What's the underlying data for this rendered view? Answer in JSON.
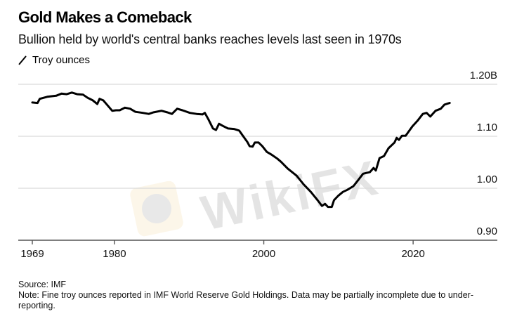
{
  "header": {
    "title": "Gold Makes a Comeback",
    "subtitle": "Bullion held by world's central banks reaches levels last seen in 1970s"
  },
  "legend": {
    "icon": "line-icon",
    "label": "Troy ounces"
  },
  "footer": {
    "source": "Source: IMF",
    "note": "Note: Fine troy ounces reported in IMF World Reserve Gold Holdings. Data may be partially incomplete due to under-reporting."
  },
  "watermark": {
    "text": "WikiFX"
  },
  "colors": {
    "line": "#000000",
    "grid": "#d9d9d9",
    "axis": "#555555"
  },
  "chart_data": {
    "type": "line",
    "title": "Gold Makes a Comeback",
    "subtitle": "Bullion held by world's central banks reaches levels last seen in 1970s",
    "xlabel": "",
    "ylabel": "Troy ounces",
    "xlim": [
      1969,
      2025
    ],
    "ylim": [
      0.9,
      1.2
    ],
    "x_ticks": [
      1969,
      1980,
      2000,
      2020
    ],
    "x_tick_labels": [
      "1969",
      "1980",
      "2000",
      "2020"
    ],
    "y_ticks": [
      0.9,
      1.0,
      1.1,
      1.2
    ],
    "y_tick_labels": [
      "0.90",
      "1.00",
      "1.10",
      "1.20B"
    ],
    "grid": true,
    "legend_position": "top-left",
    "series": [
      {
        "name": "Troy ounces",
        "unit": "billion troy ounces",
        "points": [
          [
            1969.0,
            1.165
          ],
          [
            1969.7,
            1.164
          ],
          [
            1970.0,
            1.172
          ],
          [
            1971.0,
            1.176
          ],
          [
            1972.2,
            1.178
          ],
          [
            1972.9,
            1.182
          ],
          [
            1973.6,
            1.181
          ],
          [
            1974.3,
            1.184
          ],
          [
            1975.0,
            1.181
          ],
          [
            1975.8,
            1.18
          ],
          [
            1976.4,
            1.174
          ],
          [
            1977.1,
            1.169
          ],
          [
            1977.7,
            1.162
          ],
          [
            1978.0,
            1.172
          ],
          [
            1978.5,
            1.169
          ],
          [
            1979.1,
            1.159
          ],
          [
            1979.7,
            1.149
          ],
          [
            1980.2,
            1.15
          ],
          [
            1980.7,
            1.15
          ],
          [
            1981.4,
            1.155
          ],
          [
            1982.1,
            1.153
          ],
          [
            1982.8,
            1.147
          ],
          [
            1983.8,
            1.145
          ],
          [
            1984.6,
            1.143
          ],
          [
            1985.2,
            1.146
          ],
          [
            1986.3,
            1.149
          ],
          [
            1987.1,
            1.146
          ],
          [
            1987.7,
            1.143
          ],
          [
            1988.4,
            1.153
          ],
          [
            1989.1,
            1.15
          ],
          [
            1990.1,
            1.145
          ],
          [
            1991.0,
            1.143
          ],
          [
            1991.8,
            1.142
          ],
          [
            1992.1,
            1.145
          ],
          [
            1992.6,
            1.132
          ],
          [
            1993.2,
            1.115
          ],
          [
            1993.6,
            1.112
          ],
          [
            1994.0,
            1.124
          ],
          [
            1994.5,
            1.12
          ],
          [
            1995.2,
            1.115
          ],
          [
            1996.0,
            1.114
          ],
          [
            1996.7,
            1.111
          ],
          [
            1997.3,
            1.099
          ],
          [
            1997.8,
            1.089
          ],
          [
            1998.1,
            1.081
          ],
          [
            1998.5,
            1.08
          ],
          [
            1998.8,
            1.088
          ],
          [
            1999.3,
            1.088
          ],
          [
            1999.8,
            1.081
          ],
          [
            2000.4,
            1.07
          ],
          [
            2001.1,
            1.064
          ],
          [
            2001.8,
            1.057
          ],
          [
            2002.3,
            1.051
          ],
          [
            2003.2,
            1.038
          ],
          [
            2004.4,
            1.024
          ],
          [
            2005.3,
            1.008
          ],
          [
            2006.3,
            0.993
          ],
          [
            2007.2,
            0.977
          ],
          [
            2007.8,
            0.966
          ],
          [
            2008.2,
            0.97
          ],
          [
            2008.6,
            0.964
          ],
          [
            2009.1,
            0.964
          ],
          [
            2009.4,
            0.977
          ],
          [
            2010.0,
            0.986
          ],
          [
            2010.6,
            0.993
          ],
          [
            2011.2,
            0.997
          ],
          [
            2012.0,
            1.004
          ],
          [
            2012.6,
            1.015
          ],
          [
            2013.3,
            1.028
          ],
          [
            2014.2,
            1.031
          ],
          [
            2014.7,
            1.039
          ],
          [
            2015.0,
            1.034
          ],
          [
            2015.5,
            1.058
          ],
          [
            2016.1,
            1.062
          ],
          [
            2016.7,
            1.077
          ],
          [
            2017.5,
            1.088
          ],
          [
            2017.8,
            1.097
          ],
          [
            2018.1,
            1.093
          ],
          [
            2018.5,
            1.101
          ],
          [
            2019.0,
            1.101
          ],
          [
            2019.9,
            1.119
          ],
          [
            2020.6,
            1.13
          ],
          [
            2021.3,
            1.143
          ],
          [
            2021.8,
            1.145
          ],
          [
            2022.3,
            1.138
          ],
          [
            2023.0,
            1.149
          ],
          [
            2023.7,
            1.153
          ],
          [
            2024.2,
            1.161
          ],
          [
            2024.9,
            1.164
          ]
        ]
      }
    ]
  }
}
